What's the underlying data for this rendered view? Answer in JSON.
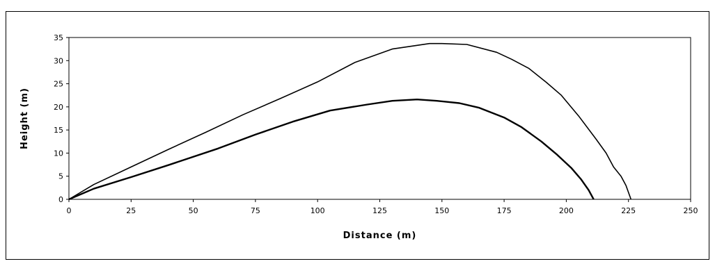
{
  "chart_data": {
    "type": "line",
    "title": "",
    "xlabel": "Distance (m)",
    "ylabel": "Height (m)",
    "xlim": [
      0,
      250
    ],
    "ylim": [
      0,
      35
    ],
    "x_ticks": [
      0,
      25,
      50,
      75,
      100,
      125,
      150,
      175,
      200,
      225,
      250
    ],
    "y_ticks": [
      0,
      5,
      10,
      15,
      20,
      25,
      30,
      35
    ],
    "grid": false,
    "legend": "none",
    "line_color": "#000000",
    "series": [
      {
        "points": [
          [
            0,
            0
          ],
          [
            10,
            3.2
          ],
          [
            25,
            7
          ],
          [
            40,
            10.8
          ],
          [
            55,
            14.5
          ],
          [
            70,
            18.3
          ],
          [
            85,
            21.8
          ],
          [
            100,
            25.4
          ],
          [
            115,
            29.6
          ],
          [
            130,
            32.5
          ],
          [
            140,
            33.3
          ],
          [
            145,
            33.7
          ],
          [
            150,
            33.7
          ],
          [
            160,
            33.5
          ],
          [
            172,
            31.8
          ],
          [
            178,
            30.3
          ],
          [
            185,
            28.3
          ],
          [
            192,
            25.3
          ],
          [
            198,
            22.5
          ],
          [
            205,
            18
          ],
          [
            212,
            13
          ],
          [
            216,
            10
          ],
          [
            219,
            7
          ],
          [
            222,
            5
          ],
          [
            224,
            3
          ],
          [
            226,
            0
          ]
        ]
      },
      {
        "points": [
          [
            0,
            0
          ],
          [
            10,
            2.3
          ],
          [
            25,
            4.8
          ],
          [
            40,
            7.4
          ],
          [
            60,
            11
          ],
          [
            75,
            14
          ],
          [
            90,
            16.8
          ],
          [
            105,
            19.2
          ],
          [
            120,
            20.5
          ],
          [
            130,
            21.3
          ],
          [
            140,
            21.6
          ],
          [
            148,
            21.3
          ],
          [
            157,
            20.8
          ],
          [
            165,
            19.8
          ],
          [
            175,
            17.7
          ],
          [
            182,
            15.6
          ],
          [
            190,
            12.5
          ],
          [
            196,
            9.8
          ],
          [
            202,
            6.8
          ],
          [
            206,
            4.3
          ],
          [
            209,
            2
          ],
          [
            211,
            0
          ]
        ]
      }
    ]
  }
}
